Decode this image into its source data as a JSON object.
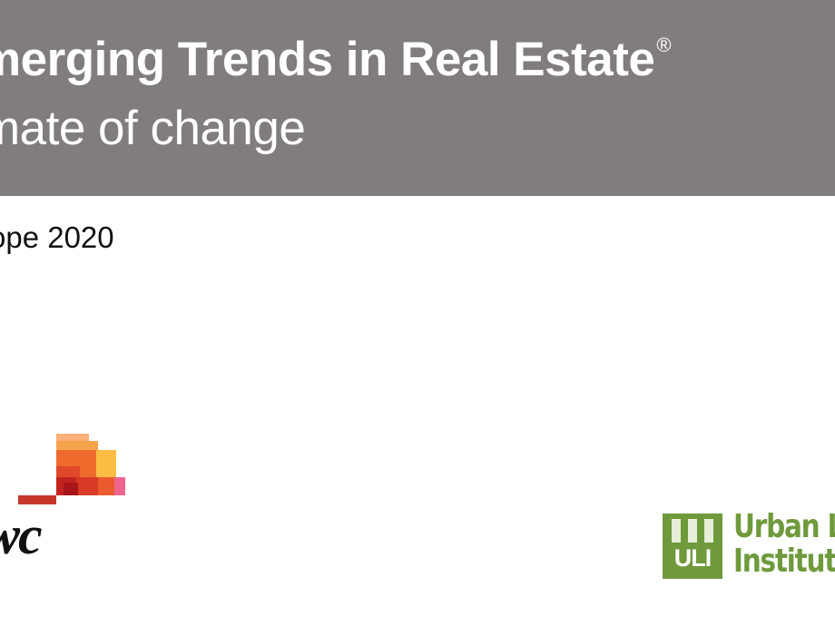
{
  "header": {
    "title": "merging Trends in Real Estate",
    "registered_mark": "®",
    "subtitle": "mate of change"
  },
  "edition": "ope 2020",
  "logos": {
    "pwc": {
      "wordmark": "wc",
      "colors": [
        "#fdc64a",
        "#f59a2a",
        "#e8532a",
        "#d63b26",
        "#b11f1e",
        "#f06590"
      ]
    },
    "uli": {
      "mark": "ULI",
      "name_line1": "Urban L",
      "name_line2": "Institut",
      "color": "#6f9a3c"
    }
  },
  "colors": {
    "banner": "#817d7c",
    "text_on_banner": "#ffffff",
    "body_text": "#111111"
  }
}
